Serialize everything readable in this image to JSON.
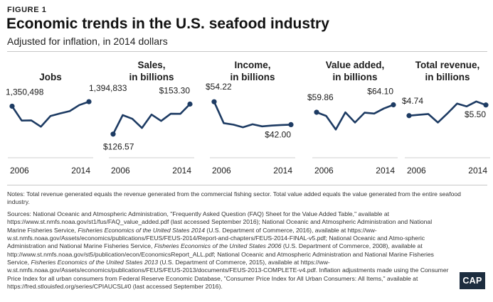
{
  "figure_label": "FIGURE 1",
  "title": "Economic trends in the U.S. seafood industry",
  "subtitle": "Adjusted for inflation, in 2014 dollars",
  "x_ticks": [
    "2006",
    "2014"
  ],
  "colors": {
    "line": "#1d3b63",
    "axis": "#cfcfcf",
    "text": "#1c1c1c",
    "logo_bg": "#1d2d3f"
  },
  "chart_data": [
    {
      "type": "line",
      "title_lines": [
        "Jobs"
      ],
      "x": [
        2006,
        2007,
        2008,
        2009,
        2010,
        2011,
        2012,
        2013,
        2014
      ],
      "values": [
        1350498,
        1210000,
        1212000,
        1150000,
        1255000,
        1280000,
        1302000,
        1362000,
        1394833
      ],
      "ylim": [
        950000,
        1500000
      ],
      "labels": {
        "first": "1,350,498",
        "last": "1,394,833"
      },
      "x_ticks": [
        "2006",
        "2014"
      ]
    },
    {
      "type": "line",
      "title_lines": [
        "Sales,",
        "in billions"
      ],
      "x": [
        2006,
        2007,
        2008,
        2009,
        2010,
        2011,
        2012,
        2013,
        2014
      ],
      "values": [
        126.57,
        143.5,
        140.2,
        132.0,
        144.0,
        138.3,
        144.7,
        144.6,
        153.3
      ],
      "ylim": [
        115,
        165
      ],
      "labels": {
        "first": "$126.57",
        "last": "$153.30"
      },
      "x_ticks": [
        "2006",
        "2014"
      ]
    },
    {
      "type": "line",
      "title_lines": [
        "Income,",
        "in billions"
      ],
      "x": [
        2006,
        2007,
        2008,
        2009,
        2010,
        2011,
        2012,
        2013,
        2014
      ],
      "values": [
        54.22,
        42.8,
        42.0,
        40.6,
        42.2,
        41.1,
        41.5,
        41.8,
        42.0
      ],
      "ylim": [
        30,
        60
      ],
      "labels": {
        "first": "$54.22",
        "last": "$42.00"
      },
      "x_ticks": [
        "2006",
        "2014"
      ]
    },
    {
      "type": "line",
      "title_lines": [
        "Value added,",
        "in billions"
      ],
      "x": [
        2006,
        2007,
        2008,
        2009,
        2010,
        2011,
        2012,
        2013,
        2014
      ],
      "values": [
        59.86,
        57.8,
        50.0,
        59.8,
        54.0,
        59.6,
        59.1,
        62.0,
        64.1
      ],
      "ylim": [
        40,
        72
      ],
      "labels": {
        "first": "$59.86",
        "last": "$64.10"
      },
      "x_ticks": [
        "2006",
        "2014"
      ]
    },
    {
      "type": "line",
      "title_lines": [
        "Total revenue,",
        "in billions"
      ],
      "x": [
        2006,
        2007,
        2008,
        2009,
        2010,
        2011,
        2012,
        2013,
        2014
      ],
      "values": [
        4.74,
        4.8,
        4.86,
        4.25,
        4.9,
        5.6,
        5.4,
        5.75,
        5.5
      ],
      "ylim": [
        2.5,
        6.5
      ],
      "labels": {
        "first": "$4.74",
        "last": "$5.50"
      },
      "x_ticks": [
        "2006",
        "2014"
      ]
    }
  ],
  "notes": "Notes: Total revenue generated equals the revenue generated from the commercial fishing sector. Total value added equals the value generated from the entire seafood industry.",
  "sources": {
    "s1": "Sources: National Oceanic and Atmospheric Administration, \"Frequently Asked Question (FAQ) Sheet for the Value Added Table,\" available at https://www.st.nmfs.noaa.gov/st1/fus/FAQ_value_added.pdf (last accessed September 2016); National Oceanic and Atmospheric Administration and National Marine Fisheries Service, ",
    "i1": "Fisheries Economics of the United States 2014",
    "s2": " (U.S. Department of Commerce, 2016), available at https://ww-w.st.nmfs.noaa.gov/Assets/economics/publications/FEUS/FEUS-2014/Report-and-chapters/FEUS-2014-FINAL-v5.pdf; National Oceanic and Atmo-spheric Administration and National Marine Fisheries Service, ",
    "i2": "Fisheries Economics of the United States 2006",
    "s3": " (U.S. Department of Commerce, 2008), available at http://www.st.nmfs.noaa.gov/st5/publication/econ/EconomicsReport_ALL.pdf; National Oceanic and Atmospheric Administration and National Marine Fisheries Service, ",
    "i3": "Fisheries Economics of the United States 2013",
    "s4": " (U.S. Department of Commerce, 2015), available at https://ww-w.st.nmfs.noaa.gov/Assets/economics/publications/FEUS/FEUS-2013/documents/FEUS-2013-COMPLETE-v4.pdf. Inflation adjustments made using the Consumer Price Index for all urban consumers from Federal Reserve Economic Database, \"Consumer Price Index for All Urban Consumers: All Items,\" available at https://fred.stlouisfed.org/series/CPIAUCSL#0 (last accessed September 2016)."
  },
  "logo_text": "CAP"
}
